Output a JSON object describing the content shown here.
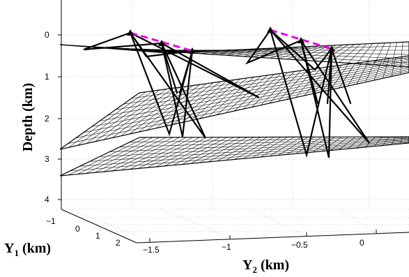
{
  "axes": {
    "z_label": "Depth  (km)",
    "y1_label_main": "Y",
    "y1_label_sub": "1",
    "y1_label_unit": " (km)",
    "y2_label_main": "Y",
    "y2_label_sub": "2",
    "y2_label_unit": " (km)",
    "z_ticks": [
      "0",
      "1",
      "2",
      "3",
      "4"
    ],
    "y1_ticks": [
      "−1",
      "0",
      "1",
      "2"
    ],
    "y2_ticks": [
      "−1.5",
      "−1",
      "−0.5",
      "0"
    ]
  },
  "colors": {
    "ray": "#000000",
    "baseline": "#e600e6",
    "grid": "#b8b8b8"
  },
  "scene": {
    "reflectors": 3,
    "source_receiver_groups": 2,
    "receivers_per_group": 3
  }
}
